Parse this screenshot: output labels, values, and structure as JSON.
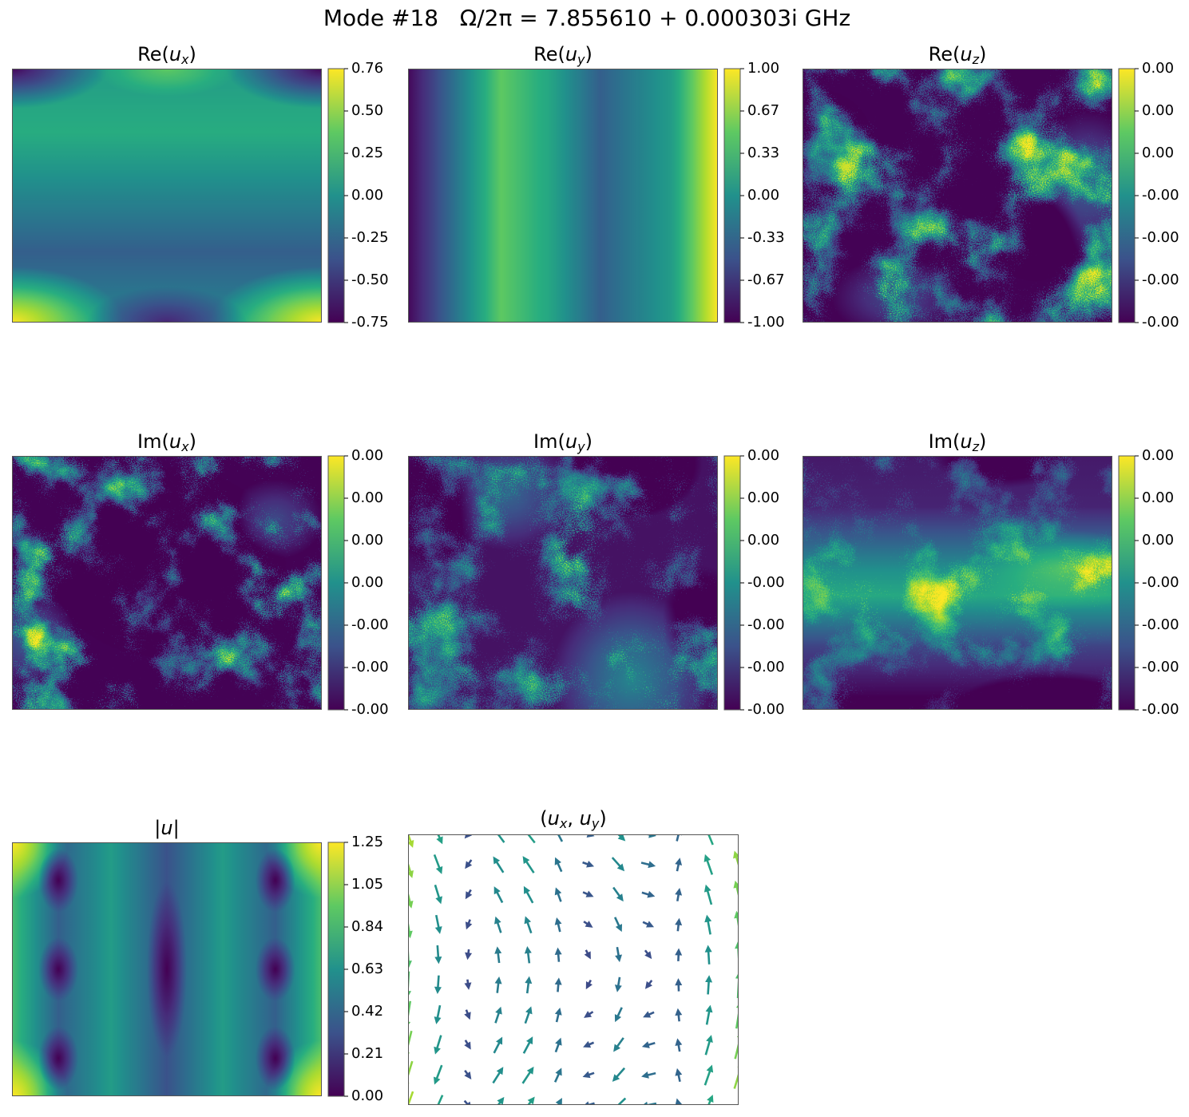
{
  "title": "Mode #18   Ω/2π = 7.855610 + 0.000303i GHz",
  "chart_data": [
    {
      "type": "heatmap",
      "title": "Re(u_x)",
      "colorbar_ticks": [
        "0.76",
        "0.50",
        "0.25",
        "0.00",
        "-0.25",
        "-0.50",
        "-0.75"
      ]
    },
    {
      "type": "heatmap",
      "title": "Re(u_y)",
      "colorbar_ticks": [
        "1.00",
        "0.67",
        "0.33",
        "0.00",
        "-0.33",
        "-0.67",
        "-1.00"
      ]
    },
    {
      "type": "heatmap",
      "title": "Re(u_z)",
      "colorbar_ticks": [
        "0.00",
        "0.00",
        "0.00",
        "-0.00",
        "-0.00",
        "-0.00",
        "-0.00"
      ]
    },
    {
      "type": "heatmap",
      "title": "Im(u_x)",
      "colorbar_ticks": [
        "0.00",
        "0.00",
        "0.00",
        "0.00",
        "-0.00",
        "-0.00",
        "-0.00"
      ]
    },
    {
      "type": "heatmap",
      "title": "Im(u_y)",
      "colorbar_ticks": [
        "0.00",
        "0.00",
        "0.00",
        "-0.00",
        "-0.00",
        "-0.00",
        "-0.00"
      ]
    },
    {
      "type": "heatmap",
      "title": "Im(u_z)",
      "colorbar_ticks": [
        "0.00",
        "0.00",
        "0.00",
        "-0.00",
        "-0.00",
        "-0.00",
        "-0.00"
      ]
    },
    {
      "type": "heatmap",
      "title": "|u|",
      "colorbar_ticks": [
        "1.25",
        "1.05",
        "0.84",
        "0.63",
        "0.42",
        "0.21",
        "0.00"
      ]
    },
    {
      "type": "quiver",
      "title": "(u_x, u_y)"
    }
  ]
}
